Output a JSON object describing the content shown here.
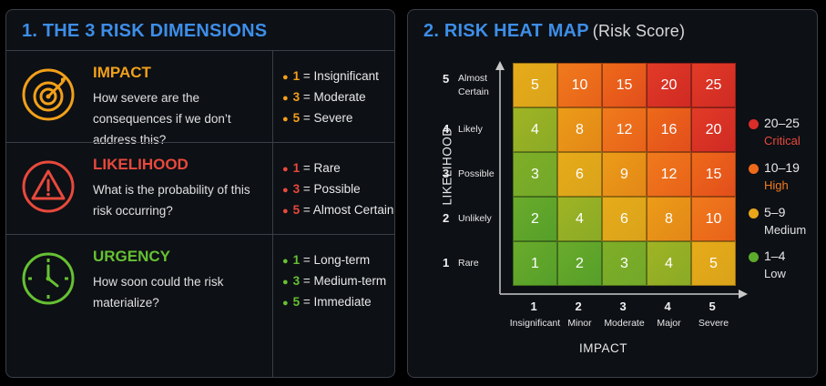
{
  "panel1": {
    "title": "1. THE 3 RISK DIMENSIONS",
    "dimensions": [
      {
        "name": "IMPACT",
        "question": "How severe are the consequences if we don’t address this?",
        "color": "#f2a019",
        "icon": "target-icon",
        "scale": [
          {
            "n": "1",
            "label": " = Insignificant"
          },
          {
            "n": "3",
            "label": " = Moderate"
          },
          {
            "n": "5",
            "label": " = Severe"
          }
        ]
      },
      {
        "name": "LIKELIHOOD",
        "question": "What is the probability of this risk occurring?",
        "color": "#e8493c",
        "icon": "warning-icon",
        "scale": [
          {
            "n": "1",
            "label": " = Rare"
          },
          {
            "n": "3",
            "label": " = Possible"
          },
          {
            "n": "5",
            "label": " = Almost Certain"
          }
        ]
      },
      {
        "name": "URGENCY",
        "question": "How soon could the risk materialize?",
        "color": "#66c132",
        "icon": "clock-icon",
        "scale": [
          {
            "n": "1",
            "label": " = Long-term"
          },
          {
            "n": "3",
            "label": " = Medium-term"
          },
          {
            "n": "5",
            "label": " = Immediate"
          }
        ]
      }
    ]
  },
  "panel2": {
    "title": "2. RISK HEAT MAP",
    "subtitle": "(Risk Score)",
    "chart_data": {
      "type": "heatmap",
      "xlabel": "IMPACT",
      "ylabel": "LIKELIHOOD",
      "x": [
        {
          "n": "1",
          "label": "Insignificant"
        },
        {
          "n": "2",
          "label": "Minor"
        },
        {
          "n": "3",
          "label": "Moderate"
        },
        {
          "n": "4",
          "label": "Major"
        },
        {
          "n": "5",
          "label": "Severe"
        }
      ],
      "y": [
        {
          "n": "1",
          "label": "Rare"
        },
        {
          "n": "2",
          "label": "Unlikely"
        },
        {
          "n": "3",
          "label": "Possible"
        },
        {
          "n": "4",
          "label": "Likely"
        },
        {
          "n": "5",
          "label": "Almost Certain"
        }
      ],
      "values": [
        [
          5,
          10,
          15,
          20,
          25
        ],
        [
          4,
          8,
          12,
          16,
          20
        ],
        [
          3,
          6,
          9,
          12,
          15
        ],
        [
          2,
          4,
          6,
          8,
          10
        ],
        [
          1,
          2,
          3,
          4,
          5
        ]
      ],
      "legend": [
        {
          "range": "20–25",
          "label": "Critical",
          "color": "#d92d2a",
          "label_color": "#e8493c"
        },
        {
          "range": "10–19",
          "label": "High",
          "color": "#ee6a1a",
          "label_color": "#f07a1e"
        },
        {
          "range": "5–9",
          "label": "Medium",
          "color": "#e9a51a",
          "label_color": "#e0e0e0"
        },
        {
          "range": "1–4",
          "label": "Low",
          "color": "#5dab2c",
          "label_color": "#e0e0e0"
        }
      ],
      "legend_position": "right"
    }
  }
}
